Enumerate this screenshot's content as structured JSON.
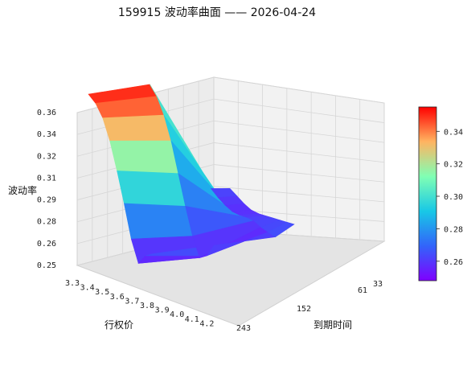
{
  "chart_data": {
    "type": "surface",
    "title": "159915 波动率曲面 —— 2026-04-24",
    "xlabel": "行权价",
    "ylabel": "到期时间",
    "zlabel": "波动率",
    "x_ticks": [
      "3.3",
      "3.4",
      "3.5",
      "3.6",
      "3.7",
      "3.8",
      "3.9",
      "4.0",
      "4.1",
      "4.2"
    ],
    "y_ticks": [
      "33",
      "61",
      "152",
      "243"
    ],
    "z_ticks": [
      "0.25",
      "0.26",
      "0.28",
      "0.29",
      "0.31",
      "0.32",
      "0.34",
      "0.36"
    ],
    "colorbar_ticks": [
      "0.26",
      "0.28",
      "0.30",
      "0.32",
      "0.34"
    ],
    "colormap": "rainbow",
    "xlim": [
      3.3,
      4.2
    ],
    "ylim": [
      33,
      243
    ],
    "zlim": [
      0.25,
      0.36
    ],
    "colorbar_range": [
      0.248,
      0.355
    ],
    "strikes": [
      3.3,
      3.4,
      3.5,
      3.6,
      3.7,
      3.8,
      3.9,
      4.0,
      4.1,
      4.2
    ],
    "expiries": [
      33,
      61,
      152,
      243
    ],
    "iv": [
      [
        0.262,
        0.265,
        0.35,
        0.353
      ],
      [
        0.26,
        0.262,
        0.345,
        0.35
      ],
      [
        0.258,
        0.26,
        0.335,
        0.343
      ],
      [
        0.257,
        0.259,
        0.32,
        0.33
      ],
      [
        0.258,
        0.26,
        0.3,
        0.312
      ],
      [
        0.26,
        0.262,
        0.28,
        0.292
      ],
      [
        0.262,
        0.263,
        0.262,
        0.27
      ],
      [
        0.264,
        0.262,
        0.25,
        0.256
      ],
      [
        0.266,
        0.262,
        0.255,
        0.265
      ],
      [
        0.268,
        0.262,
        0.266,
        0.27
      ]
    ]
  }
}
